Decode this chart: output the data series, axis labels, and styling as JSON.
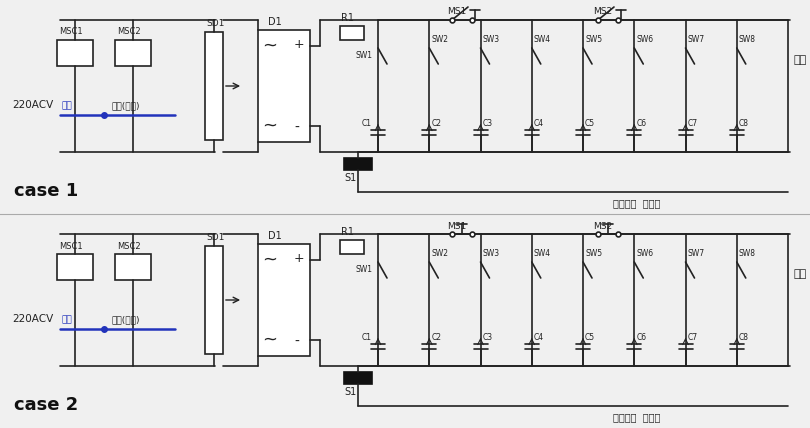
{
  "bg_color": "#f0f0f0",
  "line_color": "#222222",
  "blue_color": "#2233bb",
  "black_fill": "#111111",
  "case1_label": "case 1",
  "case2_label": "case 2",
  "output_label": "출력",
  "monitor_label": "출력전류  모니터",
  "charge_label": "충전",
  "discharge_label": "방전(출력)",
  "voltage_label": "220ACV",
  "SD1_label": "SD1",
  "D1_label": "D1",
  "R1_label": "R1",
  "S1_label": "S1",
  "MS1_label": "MS1",
  "MS2_label": "MS2",
  "MSC1_label": "MSC1",
  "MSC2_label": "MSC2",
  "SW_labels": [
    "SW1",
    "SW2",
    "SW3",
    "SW4",
    "SW5",
    "SW6",
    "SW7",
    "SW8"
  ],
  "C_labels": [
    "C1",
    "C2",
    "C3",
    "C4",
    "C5",
    "C6",
    "C7",
    "C8"
  ]
}
